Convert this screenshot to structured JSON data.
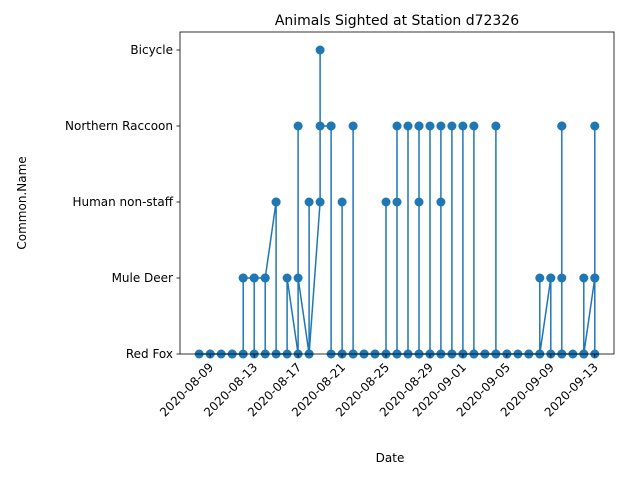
{
  "chart_data": {
    "type": "line",
    "title": "Animals Sighted at Station d72326",
    "xlabel": "Date",
    "ylabel": "Common.Name",
    "categories": [
      "Red Fox",
      "Mule Deer",
      "Human non-staff",
      "Northern Raccoon",
      "Bicycle"
    ],
    "x_ticks": [
      "2020-08-09",
      "2020-08-13",
      "2020-08-17",
      "2020-08-21",
      "2020-08-25",
      "2020-08-29",
      "2020-09-01",
      "2020-09-05",
      "2020-09-09",
      "2020-09-13"
    ],
    "xlim": [
      "2020-08-06 06:00",
      "2020-09-14 18:00"
    ],
    "grid": false,
    "legend": "none",
    "colors": {
      "line": "#1f77b4",
      "marker": "#1f77b4"
    },
    "series": [
      {
        "points": [
          [
            "2020-08-08",
            "Red Fox"
          ],
          [
            "2020-08-09",
            "Red Fox"
          ],
          [
            "2020-08-09",
            "Red Fox"
          ],
          [
            "2020-08-10",
            "Red Fox"
          ],
          [
            "2020-08-11",
            "Red Fox"
          ],
          [
            "2020-08-11",
            "Red Fox"
          ],
          [
            "2020-08-12",
            "Red Fox"
          ],
          [
            "2020-08-12",
            "Mule Deer"
          ],
          [
            "2020-08-12",
            "Mule Deer"
          ],
          [
            "2020-08-13",
            "Mule Deer"
          ],
          [
            "2020-08-13",
            "Red Fox"
          ],
          [
            "2020-08-13",
            "Mule Deer"
          ],
          [
            "2020-08-14",
            "Mule Deer"
          ],
          [
            "2020-08-14",
            "Red Fox"
          ],
          [
            "2020-08-14",
            "Mule Deer"
          ],
          [
            "2020-08-15",
            "Human non-staff"
          ],
          [
            "2020-08-15",
            "Human non-staff"
          ],
          [
            "2020-08-15",
            "Red Fox"
          ],
          [
            "2020-08-16",
            "Red Fox"
          ],
          [
            "2020-08-16",
            "Mule Deer"
          ],
          [
            "2020-08-17",
            "Red Fox"
          ],
          [
            "2020-08-17",
            "Northern Raccoon"
          ],
          [
            "2020-08-17",
            "Mule Deer"
          ],
          [
            "2020-08-18",
            "Red Fox"
          ],
          [
            "2020-08-18",
            "Human non-staff"
          ],
          [
            "2020-08-18",
            "Red Fox"
          ],
          [
            "2020-08-19",
            "Human non-staff"
          ],
          [
            "2020-08-19",
            "Bicycle"
          ],
          [
            "2020-08-19",
            "Northern Raccoon"
          ],
          [
            "2020-08-20",
            "Northern Raccoon"
          ],
          [
            "2020-08-20",
            "Northern Raccoon"
          ],
          [
            "2020-08-20",
            "Red Fox"
          ],
          [
            "2020-08-21",
            "Red Fox"
          ],
          [
            "2020-08-21",
            "Human non-staff"
          ],
          [
            "2020-08-21",
            "Red Fox"
          ],
          [
            "2020-08-22",
            "Red Fox"
          ],
          [
            "2020-08-22",
            "Northern Raccoon"
          ],
          [
            "2020-08-22",
            "Red Fox"
          ],
          [
            "2020-08-23",
            "Red Fox"
          ],
          [
            "2020-08-23",
            "Red Fox"
          ],
          [
            "2020-08-24",
            "Red Fox"
          ],
          [
            "2020-08-24",
            "Red Fox"
          ],
          [
            "2020-08-25",
            "Red Fox"
          ],
          [
            "2020-08-25",
            "Human non-staff"
          ],
          [
            "2020-08-25",
            "Red Fox"
          ],
          [
            "2020-08-26",
            "Red Fox"
          ],
          [
            "2020-08-26",
            "Human non-staff"
          ],
          [
            "2020-08-26",
            "Northern Raccoon"
          ],
          [
            "2020-08-26",
            "Red Fox"
          ],
          [
            "2020-08-27",
            "Red Fox"
          ],
          [
            "2020-08-27",
            "Northern Raccoon"
          ],
          [
            "2020-08-27",
            "Red Fox"
          ],
          [
            "2020-08-28",
            "Red Fox"
          ],
          [
            "2020-08-28",
            "Northern Raccoon"
          ],
          [
            "2020-08-28",
            "Human non-staff"
          ],
          [
            "2020-08-28",
            "Northern Raccoon"
          ],
          [
            "2020-08-28",
            "Red Fox"
          ],
          [
            "2020-08-29",
            "Red Fox"
          ],
          [
            "2020-08-29",
            "Northern Raccoon"
          ],
          [
            "2020-08-29",
            "Red Fox"
          ],
          [
            "2020-08-30",
            "Red Fox"
          ],
          [
            "2020-08-30",
            "Northern Raccoon"
          ],
          [
            "2020-08-30",
            "Human non-staff"
          ],
          [
            "2020-08-30",
            "Red Fox"
          ],
          [
            "2020-08-31",
            "Red Fox"
          ],
          [
            "2020-08-31",
            "Northern Raccoon"
          ],
          [
            "2020-08-31",
            "Red Fox"
          ],
          [
            "2020-09-01",
            "Red Fox"
          ],
          [
            "2020-09-01",
            "Northern Raccoon"
          ],
          [
            "2020-09-01",
            "Red Fox"
          ],
          [
            "2020-09-02",
            "Red Fox"
          ],
          [
            "2020-09-02",
            "Northern Raccoon"
          ],
          [
            "2020-09-02",
            "Red Fox"
          ],
          [
            "2020-09-03",
            "Red Fox"
          ],
          [
            "2020-09-03",
            "Red Fox"
          ],
          [
            "2020-09-04",
            "Red Fox"
          ],
          [
            "2020-09-04",
            "Northern Raccoon"
          ],
          [
            "2020-09-04",
            "Red Fox"
          ],
          [
            "2020-09-05",
            "Red Fox"
          ],
          [
            "2020-09-05",
            "Red Fox"
          ],
          [
            "2020-09-06",
            "Red Fox"
          ],
          [
            "2020-09-07",
            "Red Fox"
          ],
          [
            "2020-09-07",
            "Red Fox"
          ],
          [
            "2020-09-08",
            "Red Fox"
          ],
          [
            "2020-09-08",
            "Mule Deer"
          ],
          [
            "2020-09-08",
            "Red Fox"
          ],
          [
            "2020-09-09",
            "Mule Deer"
          ],
          [
            "2020-09-09",
            "Mule Deer"
          ],
          [
            "2020-09-09",
            "Red Fox"
          ],
          [
            "2020-09-10",
            "Red Fox"
          ],
          [
            "2020-09-10",
            "Mule Deer"
          ],
          [
            "2020-09-10",
            "Northern Raccoon"
          ],
          [
            "2020-09-10",
            "Northern Raccoon"
          ],
          [
            "2020-09-10",
            "Red Fox"
          ],
          [
            "2020-09-11",
            "Red Fox"
          ],
          [
            "2020-09-12",
            "Red Fox"
          ],
          [
            "2020-09-12",
            "Mule Deer"
          ],
          [
            "2020-09-12",
            "Red Fox"
          ],
          [
            "2020-09-13",
            "Mule Deer"
          ],
          [
            "2020-09-13",
            "Northern Raccoon"
          ],
          [
            "2020-09-13",
            "Mule Deer"
          ],
          [
            "2020-09-13",
            "Red Fox"
          ]
        ]
      }
    ]
  }
}
